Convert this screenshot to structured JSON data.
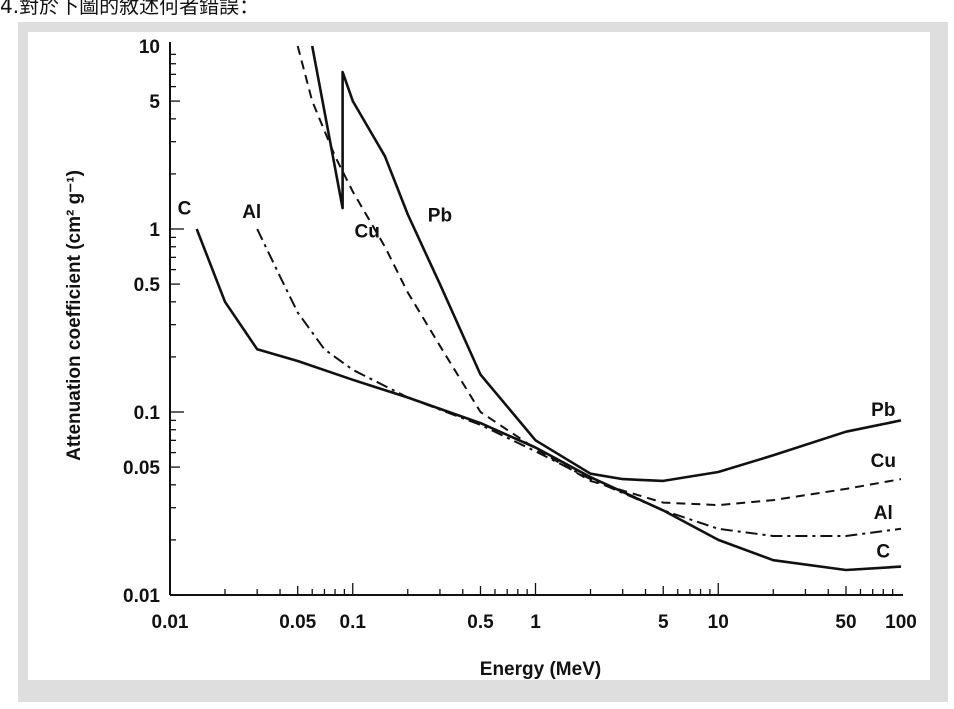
{
  "caption": "4.對於下圖的敘述何者錯誤：",
  "chart_data": {
    "type": "line",
    "xlabel": "Energy  (MeV)",
    "ylabel": "Attenuation  coefficient  (cm² g⁻¹)",
    "xscale": "log",
    "yscale": "log",
    "xlim": [
      0.01,
      100
    ],
    "ylim": [
      0.01,
      10
    ],
    "x_tick_labels": [
      {
        "value": 0.01,
        "label": "0.01"
      },
      {
        "value": 0.05,
        "label": "0.05"
      },
      {
        "value": 0.1,
        "label": "0.1"
      },
      {
        "value": 0.5,
        "label": "0.5"
      },
      {
        "value": 1,
        "label": "1"
      },
      {
        "value": 5,
        "label": "5"
      },
      {
        "value": 10,
        "label": "10"
      },
      {
        "value": 50,
        "label": "50"
      },
      {
        "value": 100,
        "label": "100"
      }
    ],
    "y_tick_labels": [
      {
        "value": 10,
        "label": "10"
      },
      {
        "value": 5,
        "label": "5"
      },
      {
        "value": 1,
        "label": "1"
      },
      {
        "value": 0.5,
        "label": "0.5"
      },
      {
        "value": 0.1,
        "label": "0.1"
      },
      {
        "value": 0.05,
        "label": "0.05"
      },
      {
        "value": 0.01,
        "label": "0.01"
      }
    ],
    "grid": false,
    "series": [
      {
        "name": "C",
        "dash": "solid",
        "points": [
          [
            0.014,
            1.0
          ],
          [
            0.02,
            0.4
          ],
          [
            0.03,
            0.22
          ],
          [
            0.05,
            0.19
          ],
          [
            0.1,
            0.15
          ],
          [
            0.2,
            0.12
          ],
          [
            0.5,
            0.087
          ],
          [
            1,
            0.064
          ],
          [
            2,
            0.044
          ],
          [
            5,
            0.029
          ],
          [
            10,
            0.02
          ],
          [
            20,
            0.0155
          ],
          [
            50,
            0.0137
          ],
          [
            100,
            0.0143
          ]
        ]
      },
      {
        "name": "Al",
        "dash": "dashdot",
        "points": [
          [
            0.03,
            1.0
          ],
          [
            0.04,
            0.55
          ],
          [
            0.05,
            0.35
          ],
          [
            0.07,
            0.22
          ],
          [
            0.1,
            0.17
          ],
          [
            0.2,
            0.12
          ],
          [
            0.5,
            0.085
          ],
          [
            1,
            0.061
          ],
          [
            2,
            0.043
          ],
          [
            5,
            0.029
          ],
          [
            10,
            0.023
          ],
          [
            20,
            0.021
          ],
          [
            50,
            0.021
          ],
          [
            100,
            0.023
          ]
        ]
      },
      {
        "name": "Cu",
        "dash": "dashed",
        "points": [
          [
            0.05,
            10.0
          ],
          [
            0.06,
            5.0
          ],
          [
            0.08,
            2.5
          ],
          [
            0.1,
            1.6
          ],
          [
            0.15,
            0.8
          ],
          [
            0.2,
            0.45
          ],
          [
            0.3,
            0.23
          ],
          [
            0.5,
            0.1
          ],
          [
            1,
            0.063
          ],
          [
            2,
            0.042
          ],
          [
            5,
            0.032
          ],
          [
            10,
            0.031
          ],
          [
            20,
            0.033
          ],
          [
            50,
            0.038
          ],
          [
            100,
            0.043
          ]
        ]
      },
      {
        "name": "Pb",
        "dash": "solid",
        "points": [
          [
            0.06,
            10.0
          ],
          [
            0.088,
            1.3
          ],
          [
            0.088,
            7.2
          ],
          [
            0.1,
            5.0
          ],
          [
            0.15,
            2.5
          ],
          [
            0.2,
            1.2
          ],
          [
            0.3,
            0.5
          ],
          [
            0.5,
            0.16
          ],
          [
            1,
            0.07
          ],
          [
            2,
            0.046
          ],
          [
            3,
            0.043
          ],
          [
            5,
            0.042
          ],
          [
            10,
            0.047
          ],
          [
            20,
            0.058
          ],
          [
            50,
            0.078
          ],
          [
            100,
            0.09
          ]
        ]
      }
    ],
    "series_labels": [
      {
        "series": "C",
        "text": "C",
        "at": [
          0.012,
          1.2
        ]
      },
      {
        "series": "Al",
        "text": "Al",
        "at": [
          0.028,
          1.15
        ]
      },
      {
        "series": "Cu",
        "text": "Cu",
        "at": [
          0.12,
          0.9
        ]
      },
      {
        "series": "Pb",
        "text": "Pb",
        "at": [
          0.3,
          1.1
        ]
      },
      {
        "series": "Pb",
        "text": "Pb",
        "at": [
          80,
          0.095
        ]
      },
      {
        "series": "Cu",
        "text": "Cu",
        "at": [
          80,
          0.05
        ]
      },
      {
        "series": "Al",
        "text": "Al",
        "at": [
          80,
          0.026
        ]
      },
      {
        "series": "C",
        "text": "C",
        "at": [
          80,
          0.016
        ]
      }
    ]
  }
}
